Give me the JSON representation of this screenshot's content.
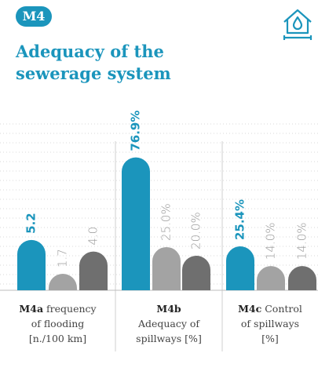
{
  "badge": "M4",
  "title": "Adequacy of the sewerage system",
  "chart_data": [
    {
      "type": "bar",
      "code": "M4a",
      "label": "frequency of flooding [n./100 km]",
      "values": [
        5.2,
        1.7,
        4.0
      ],
      "value_labels": [
        "5.2",
        "1.7",
        "4.0"
      ],
      "colors": [
        "#1b95bc",
        "#a3a3a3",
        "#6f6f6f"
      ],
      "ylim": [
        0,
        15
      ]
    },
    {
      "type": "bar",
      "code": "M4b",
      "label": "Adequacy of spillways [%]",
      "values": [
        76.9,
        25.0,
        20.0
      ],
      "value_labels": [
        "76.9%",
        "25.0%",
        "20.0%"
      ],
      "colors": [
        "#1b95bc",
        "#a3a3a3",
        "#6f6f6f"
      ],
      "ylim": [
        0,
        84
      ]
    },
    {
      "type": "bar",
      "code": "M4c",
      "label": "Control of spillways [%]",
      "values": [
        25.4,
        14.0,
        14.0
      ],
      "value_labels": [
        "25.4%",
        "14.0%",
        "14.0%"
      ],
      "colors": [
        "#1b95bc",
        "#a3a3a3",
        "#6f6f6f"
      ],
      "ylim": [
        0,
        84
      ]
    }
  ]
}
